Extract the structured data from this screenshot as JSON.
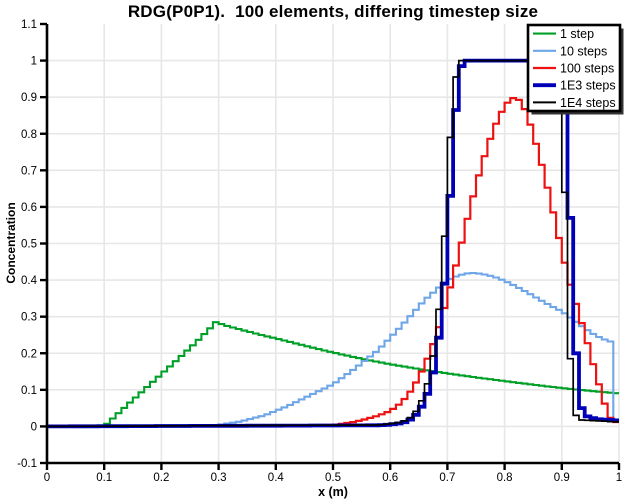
{
  "chart_data": {
    "type": "line",
    "title": "RDG(P0P1).  100 elements, differing timestep size",
    "xlabel": "x (m)",
    "ylabel": "Concentration",
    "xlim": [
      0,
      1
    ],
    "ylim": [
      -0.1,
      1.1
    ],
    "x_ticks": [
      0,
      0.1,
      0.2,
      0.3,
      0.4,
      0.5,
      0.6,
      0.7,
      0.8,
      0.9,
      1
    ],
    "x_tick_labels": [
      "0",
      "0.1",
      "0.2",
      "0.3",
      "0.4",
      "0.5",
      "0.6",
      "0.7",
      "0.8",
      "0.9",
      "1"
    ],
    "y_ticks": [
      -0.1,
      0,
      0.1,
      0.2,
      0.3,
      0.4,
      0.5,
      0.6,
      0.7,
      0.8,
      0.9,
      1,
      1.1
    ],
    "y_tick_labels": [
      "-0.1",
      "0",
      "0.1",
      "0.2",
      "0.3",
      "0.4",
      "0.5",
      "0.6",
      "0.7",
      "0.8",
      "0.9",
      "1",
      "1.1"
    ],
    "grid": true,
    "grid_color": "#e7e7e7",
    "axis_color": "#000000",
    "num_elements": 100,
    "legend": {
      "position": "top-right",
      "border_color": "#000000",
      "background": "#ffffff"
    },
    "series": [
      {
        "name": "1 step",
        "color": "#00a028",
        "line_width": 2.1,
        "points": [
          [
            0,
            0
          ],
          [
            0.1,
            0
          ],
          [
            0.12,
            0.029
          ],
          [
            0.14,
            0.058
          ],
          [
            0.16,
            0.086
          ],
          [
            0.18,
            0.115
          ],
          [
            0.2,
            0.143
          ],
          [
            0.22,
            0.171
          ],
          [
            0.24,
            0.2
          ],
          [
            0.26,
            0.229
          ],
          [
            0.28,
            0.26
          ],
          [
            0.295,
            0.285
          ],
          [
            0.31,
            0.277
          ],
          [
            0.34,
            0.264
          ],
          [
            0.38,
            0.248
          ],
          [
            0.42,
            0.233
          ],
          [
            0.46,
            0.217
          ],
          [
            0.5,
            0.202
          ],
          [
            0.55,
            0.185
          ],
          [
            0.6,
            0.17
          ],
          [
            0.65,
            0.157
          ],
          [
            0.7,
            0.145
          ],
          [
            0.75,
            0.134
          ],
          [
            0.8,
            0.124
          ],
          [
            0.85,
            0.114
          ],
          [
            0.9,
            0.105
          ],
          [
            0.95,
            0.097
          ],
          [
            1.0,
            0.09
          ]
        ]
      },
      {
        "name": "10 steps",
        "color": "#6fa6e8",
        "line_width": 2.1,
        "points": [
          [
            0,
            0
          ],
          [
            0.3,
            0.004
          ],
          [
            0.34,
            0.014
          ],
          [
            0.38,
            0.03
          ],
          [
            0.42,
            0.055
          ],
          [
            0.46,
            0.085
          ],
          [
            0.5,
            0.115
          ],
          [
            0.54,
            0.16
          ],
          [
            0.58,
            0.21
          ],
          [
            0.62,
            0.275
          ],
          [
            0.66,
            0.345
          ],
          [
            0.7,
            0.4
          ],
          [
            0.72,
            0.413
          ],
          [
            0.74,
            0.42
          ],
          [
            0.76,
            0.417
          ],
          [
            0.78,
            0.41
          ],
          [
            0.8,
            0.398
          ],
          [
            0.82,
            0.383
          ],
          [
            0.84,
            0.366
          ],
          [
            0.86,
            0.348
          ],
          [
            0.88,
            0.33
          ],
          [
            0.9,
            0.315
          ],
          [
            0.92,
            0.292
          ],
          [
            0.94,
            0.268
          ],
          [
            0.96,
            0.248
          ],
          [
            0.98,
            0.234
          ],
          [
            0.985,
            0.232
          ],
          [
            0.99,
            0.02
          ],
          [
            1.0,
            0.012
          ]
        ]
      },
      {
        "name": "100 steps",
        "color": "#ee1111",
        "line_width": 2.2,
        "points": [
          [
            0,
            0
          ],
          [
            0.5,
            0.004
          ],
          [
            0.52,
            0.008
          ],
          [
            0.54,
            0.013
          ],
          [
            0.56,
            0.021
          ],
          [
            0.58,
            0.03
          ],
          [
            0.6,
            0.042
          ],
          [
            0.62,
            0.065
          ],
          [
            0.64,
            0.105
          ],
          [
            0.66,
            0.165
          ],
          [
            0.68,
            0.245
          ],
          [
            0.7,
            0.35
          ],
          [
            0.72,
            0.47
          ],
          [
            0.74,
            0.6
          ],
          [
            0.76,
            0.715
          ],
          [
            0.78,
            0.81
          ],
          [
            0.79,
            0.845
          ],
          [
            0.8,
            0.875
          ],
          [
            0.81,
            0.895
          ],
          [
            0.82,
            0.9
          ],
          [
            0.83,
            0.885
          ],
          [
            0.84,
            0.85
          ],
          [
            0.85,
            0.8
          ],
          [
            0.86,
            0.745
          ],
          [
            0.87,
            0.685
          ],
          [
            0.88,
            0.62
          ],
          [
            0.89,
            0.55
          ],
          [
            0.9,
            0.48
          ],
          [
            0.91,
            0.415
          ],
          [
            0.92,
            0.36
          ],
          [
            0.93,
            0.31
          ],
          [
            0.94,
            0.255
          ],
          [
            0.95,
            0.2
          ],
          [
            0.96,
            0.14
          ],
          [
            0.97,
            0.09
          ],
          [
            0.98,
            0.035
          ],
          [
            0.99,
            0.012
          ],
          [
            1.0,
            0.012
          ]
        ]
      },
      {
        "name": "1E3 steps",
        "color": "#0000b8",
        "line_width": 3.8,
        "points": [
          [
            0,
            0
          ],
          [
            0.58,
            0.003
          ],
          [
            0.6,
            0.005
          ],
          [
            0.62,
            0.009
          ],
          [
            0.63,
            0.014
          ],
          [
            0.64,
            0.023
          ],
          [
            0.65,
            0.04
          ],
          [
            0.66,
            0.068
          ],
          [
            0.67,
            0.11
          ],
          [
            0.68,
            0.185
          ],
          [
            0.69,
            0.3
          ],
          [
            0.695,
            0.39
          ],
          [
            0.7,
            0.5
          ],
          [
            0.705,
            0.63
          ],
          [
            0.71,
            0.76
          ],
          [
            0.715,
            0.865
          ],
          [
            0.72,
            0.94
          ],
          [
            0.725,
            0.985
          ],
          [
            0.73,
            1.0
          ],
          [
            0.89,
            1.0
          ],
          [
            0.9,
            0.98
          ],
          [
            0.905,
            0.92
          ],
          [
            0.91,
            0.78
          ],
          [
            0.915,
            0.57
          ],
          [
            0.92,
            0.37
          ],
          [
            0.925,
            0.2
          ],
          [
            0.93,
            0.1
          ],
          [
            0.935,
            0.05
          ],
          [
            0.94,
            0.03
          ],
          [
            0.96,
            0.02
          ],
          [
            1.0,
            0.016
          ]
        ]
      },
      {
        "name": "1E4 steps",
        "color": "#000000",
        "line_width": 1.7,
        "points": [
          [
            0,
            0
          ],
          [
            0.58,
            0.004
          ],
          [
            0.6,
            0.007
          ],
          [
            0.62,
            0.012
          ],
          [
            0.63,
            0.018
          ],
          [
            0.64,
            0.03
          ],
          [
            0.65,
            0.052
          ],
          [
            0.66,
            0.088
          ],
          [
            0.67,
            0.145
          ],
          [
            0.68,
            0.24
          ],
          [
            0.69,
            0.4
          ],
          [
            0.695,
            0.52
          ],
          [
            0.7,
            0.66
          ],
          [
            0.705,
            0.79
          ],
          [
            0.71,
            0.89
          ],
          [
            0.715,
            0.955
          ],
          [
            0.72,
            0.99
          ],
          [
            0.725,
            1.0
          ],
          [
            0.885,
            1.0
          ],
          [
            0.89,
            0.995
          ],
          [
            0.895,
            0.96
          ],
          [
            0.9,
            0.85
          ],
          [
            0.905,
            0.64
          ],
          [
            0.91,
            0.4
          ],
          [
            0.915,
            0.185
          ],
          [
            0.92,
            0.07
          ],
          [
            0.925,
            0.03
          ],
          [
            0.93,
            0.018
          ],
          [
            1.0,
            0.012
          ]
        ]
      }
    ]
  }
}
